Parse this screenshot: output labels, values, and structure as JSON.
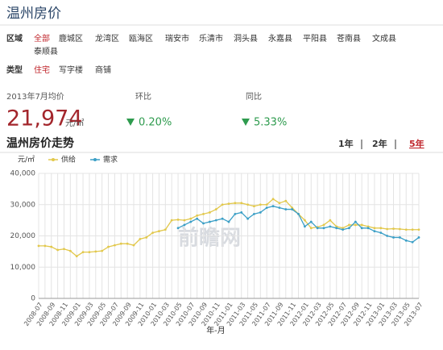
{
  "header": {
    "title": "温州房价"
  },
  "filters": {
    "region": {
      "label": "区域",
      "options": [
        "全部",
        "鹿城区",
        "龙湾区",
        "瓯海区",
        "瑞安市",
        "乐清市",
        "洞头县",
        "永嘉县",
        "平阳县",
        "苍南县",
        "文成县",
        "泰顺县"
      ]
    },
    "type": {
      "label": "类型",
      "options": [
        "住宅",
        "写字楼",
        "商铺"
      ]
    }
  },
  "price": {
    "period": "2013年7月均价",
    "value": "21,974",
    "unit": "元/㎡",
    "mom_label": "环比",
    "mom": "0.20%",
    "yoy_label": "同比",
    "yoy": "5.33%"
  },
  "trend": {
    "title": "温州房价走势",
    "ranges": [
      "1年",
      "2年",
      "5年"
    ]
  },
  "watermark": "前瞻网",
  "chart_data": {
    "type": "line",
    "y_unit": "元/㎡",
    "xlabel": "年-月",
    "categories": [
      "2008-07",
      null,
      "2008-09",
      null,
      "2008-11",
      null,
      "2009-01",
      null,
      "2009-03",
      null,
      "2009-05",
      null,
      "2009-07",
      null,
      "2009-09",
      null,
      "2009-11",
      null,
      "2010-01",
      null,
      "2010-03",
      null,
      "2010-05",
      null,
      "2010-07",
      null,
      "2010-09",
      null,
      "2010-11",
      null,
      "2011-01",
      null,
      "2011-03",
      null,
      "2011-05",
      null,
      "2011-07",
      null,
      "2011-09",
      null,
      "2011-11",
      null,
      "2012-01",
      null,
      "2012-03",
      null,
      "2012-05",
      null,
      "2012-07",
      null,
      "2012-09",
      null,
      "2012-11",
      null,
      "2013-01",
      null,
      "2013-03",
      null,
      "2013-05",
      null,
      "2013-07"
    ],
    "series": [
      {
        "name": "供给",
        "color": "#e2c84c",
        "values": [
          16800,
          16800,
          16500,
          15500,
          15800,
          15200,
          13500,
          14800,
          14800,
          15000,
          15200,
          16500,
          17000,
          17500,
          17500,
          17000,
          19000,
          19500,
          21000,
          21500,
          22000,
          25000,
          25200,
          25000,
          25500,
          26500,
          27000,
          27500,
          28500,
          30000,
          30300,
          30500,
          30500,
          30000,
          29500,
          30000,
          30000,
          31800,
          30500,
          31200,
          29000,
          27000,
          25000,
          22500,
          22800,
          23500,
          25000,
          23000,
          22500,
          23500,
          23500,
          23500,
          23000,
          22500,
          22500,
          22200,
          22300,
          22200,
          22000,
          22000,
          22000
        ]
      },
      {
        "name": "需求",
        "color": "#3b9fc6",
        "values": [
          null,
          null,
          null,
          null,
          null,
          null,
          null,
          null,
          null,
          null,
          null,
          null,
          null,
          null,
          null,
          null,
          null,
          null,
          null,
          null,
          null,
          null,
          22500,
          23500,
          24500,
          25500,
          24000,
          24500,
          25000,
          25500,
          24500,
          27000,
          27500,
          25500,
          27000,
          27500,
          29000,
          29500,
          29000,
          28500,
          28500,
          27000,
          23000,
          24500,
          22500,
          22500,
          23000,
          22500,
          22000,
          22500,
          24500,
          22500,
          22500,
          21500,
          21000,
          20000,
          19500,
          19500,
          18500,
          18000,
          19500
        ]
      }
    ],
    "ylim": [
      0,
      40000
    ],
    "yticks": [
      0,
      {
        "value": 10000,
        "label": "10,000"
      },
      {
        "value": 20000,
        "label": "20,000"
      },
      {
        "value": 30000,
        "label": "30,000"
      },
      {
        "value": 40000,
        "label": "40,000"
      }
    ],
    "grid": true
  }
}
